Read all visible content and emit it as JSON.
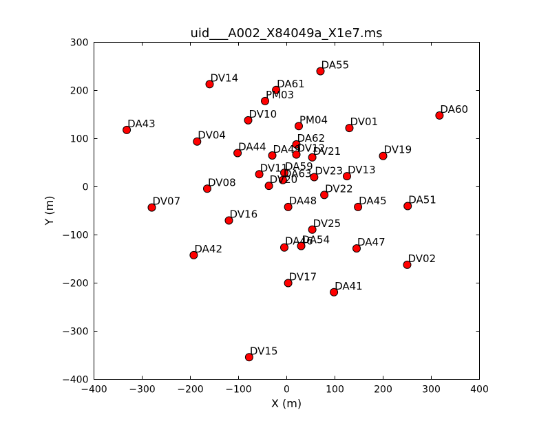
{
  "chart_data": {
    "type": "scatter",
    "title": "uid___A002_X84049a_X1e7.ms",
    "xlabel": "X (m)",
    "ylabel": "Y (m)",
    "xlim": [
      -400,
      400
    ],
    "ylim": [
      -400,
      300
    ],
    "xticks": [
      -400,
      -300,
      -200,
      -100,
      0,
      100,
      200,
      300,
      400
    ],
    "yticks": [
      -400,
      -300,
      -200,
      -100,
      0,
      100,
      200,
      300
    ],
    "xtick_labels": [
      "−400",
      "−300",
      "−200",
      "−100",
      "0",
      "100",
      "200",
      "300",
      "400"
    ],
    "ytick_labels": [
      "−400",
      "−300",
      "−200",
      "−100",
      "0",
      "100",
      "200",
      "300"
    ],
    "grid": false,
    "marker_color": "#ff0000",
    "marker_edge_color": "#000000",
    "points": [
      {
        "label": "DV14",
        "x": -160,
        "y": 213
      },
      {
        "label": "DA61",
        "x": -22,
        "y": 201
      },
      {
        "label": "DA55",
        "x": 70,
        "y": 240
      },
      {
        "label": "PM03",
        "x": -45,
        "y": 178
      },
      {
        "label": "DV10",
        "x": -80,
        "y": 138
      },
      {
        "label": "PM04",
        "x": 25,
        "y": 126
      },
      {
        "label": "DV01",
        "x": 130,
        "y": 122
      },
      {
        "label": "DA60",
        "x": 317,
        "y": 148
      },
      {
        "label": "DA43",
        "x": -332,
        "y": 118
      },
      {
        "label": "DV04",
        "x": -186,
        "y": 94
      },
      {
        "label": "DA62",
        "x": 20,
        "y": 88
      },
      {
        "label": "DA44",
        "x": -102,
        "y": 70
      },
      {
        "label": "DA49",
        "x": -30,
        "y": 65
      },
      {
        "label": "DV12",
        "x": 20,
        "y": 67
      },
      {
        "label": "DV21",
        "x": 53,
        "y": 61
      },
      {
        "label": "DV19",
        "x": 200,
        "y": 64
      },
      {
        "label": "DV11",
        "x": -57,
        "y": 26
      },
      {
        "label": "DA59",
        "x": -5,
        "y": 29
      },
      {
        "label": "DA63",
        "x": -8,
        "y": 14
      },
      {
        "label": "DV20",
        "x": -37,
        "y": 2
      },
      {
        "label": "DV23",
        "x": 57,
        "y": 20
      },
      {
        "label": "DV13",
        "x": 125,
        "y": 22
      },
      {
        "label": "DV08",
        "x": -165,
        "y": -4
      },
      {
        "label": "DV22",
        "x": 78,
        "y": -17
      },
      {
        "label": "DV07",
        "x": -280,
        "y": -43
      },
      {
        "label": "DA48",
        "x": 3,
        "y": -42
      },
      {
        "label": "DA45",
        "x": 148,
        "y": -42
      },
      {
        "label": "DA51",
        "x": 251,
        "y": -40
      },
      {
        "label": "DV16",
        "x": -120,
        "y": -70
      },
      {
        "label": "DV25",
        "x": 53,
        "y": -89
      },
      {
        "label": "DA46",
        "x": -5,
        "y": -126
      },
      {
        "label": "DA54",
        "x": 30,
        "y": -123
      },
      {
        "label": "DA47",
        "x": 145,
        "y": -128
      },
      {
        "label": "DA42",
        "x": -193,
        "y": -142
      },
      {
        "label": "DV02",
        "x": 250,
        "y": -162
      },
      {
        "label": "DV17",
        "x": 3,
        "y": -200
      },
      {
        "label": "DA41",
        "x": 98,
        "y": -219
      },
      {
        "label": "DV15",
        "x": -78,
        "y": -354
      }
    ]
  }
}
